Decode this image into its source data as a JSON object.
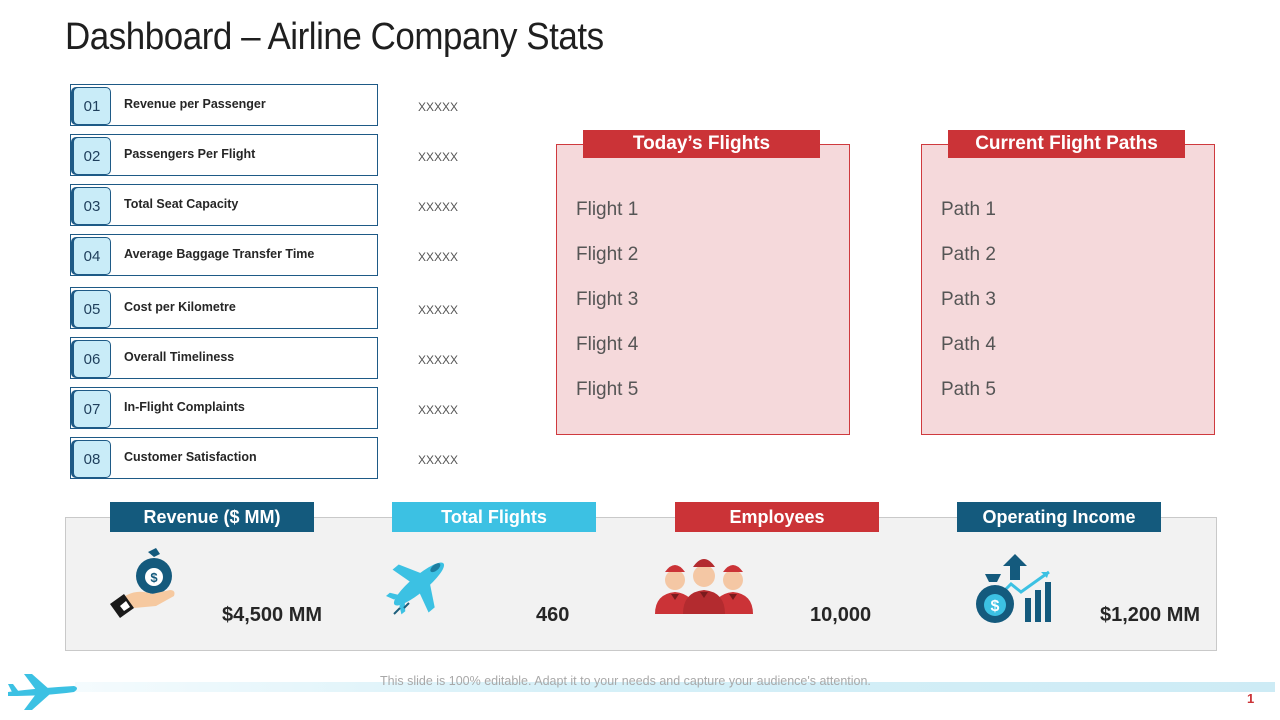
{
  "title": "Dashboard – Airline Company Stats",
  "kpis": [
    {
      "num": "01",
      "label": "Revenue per Passenger",
      "value": "XXXXX"
    },
    {
      "num": "02",
      "label": "Passengers Per Flight",
      "value": "XXXXX"
    },
    {
      "num": "03",
      "label": "Total Seat Capacity",
      "value": "XXXXX"
    },
    {
      "num": "04",
      "label": "Average Baggage Transfer Time",
      "value": "XXXXX"
    },
    {
      "num": "05",
      "label": "Cost per Kilometre",
      "value": "XXXXX"
    },
    {
      "num": "06",
      "label": "Overall Timeliness",
      "value": "XXXXX"
    },
    {
      "num": "07",
      "label": "In-Flight Complaints",
      "value": "XXXXX"
    },
    {
      "num": "08",
      "label": "Customer Satisfaction",
      "value": "XXXXX"
    }
  ],
  "flights_panel": {
    "title": "Today’s Flights",
    "items": [
      "Flight 1",
      "Flight 2",
      "Flight 3",
      "Flight 4",
      "Flight 5"
    ]
  },
  "paths_panel": {
    "title": "Current Flight Paths",
    "items": [
      "Path 1",
      "Path 2",
      "Path 3",
      "Path 4",
      "Path 5"
    ]
  },
  "stats": [
    {
      "label": "Revenue ($ MM)",
      "value": "$4,500 MM",
      "color": "#145a7d",
      "icon": "money-bag-hand-icon"
    },
    {
      "label": "Total Flights",
      "value": "460",
      "color": "#3cc1e3",
      "icon": "airplane-icon"
    },
    {
      "label": "Employees",
      "value": "10,000",
      "color": "#cb3337",
      "icon": "crew-icon"
    },
    {
      "label": "Operating Income",
      "value": "$1,200 MM",
      "color": "#145a7d",
      "icon": "income-growth-icon"
    }
  ],
  "footer": {
    "note": "This slide is 100% editable. Adapt it to your needs and capture your audience's attention.",
    "page_number": "1"
  },
  "colors": {
    "accent_red": "#cb3337",
    "accent_navy": "#145a7d",
    "accent_cyan": "#3cc1e3",
    "panel_fill": "#f5d9db"
  }
}
